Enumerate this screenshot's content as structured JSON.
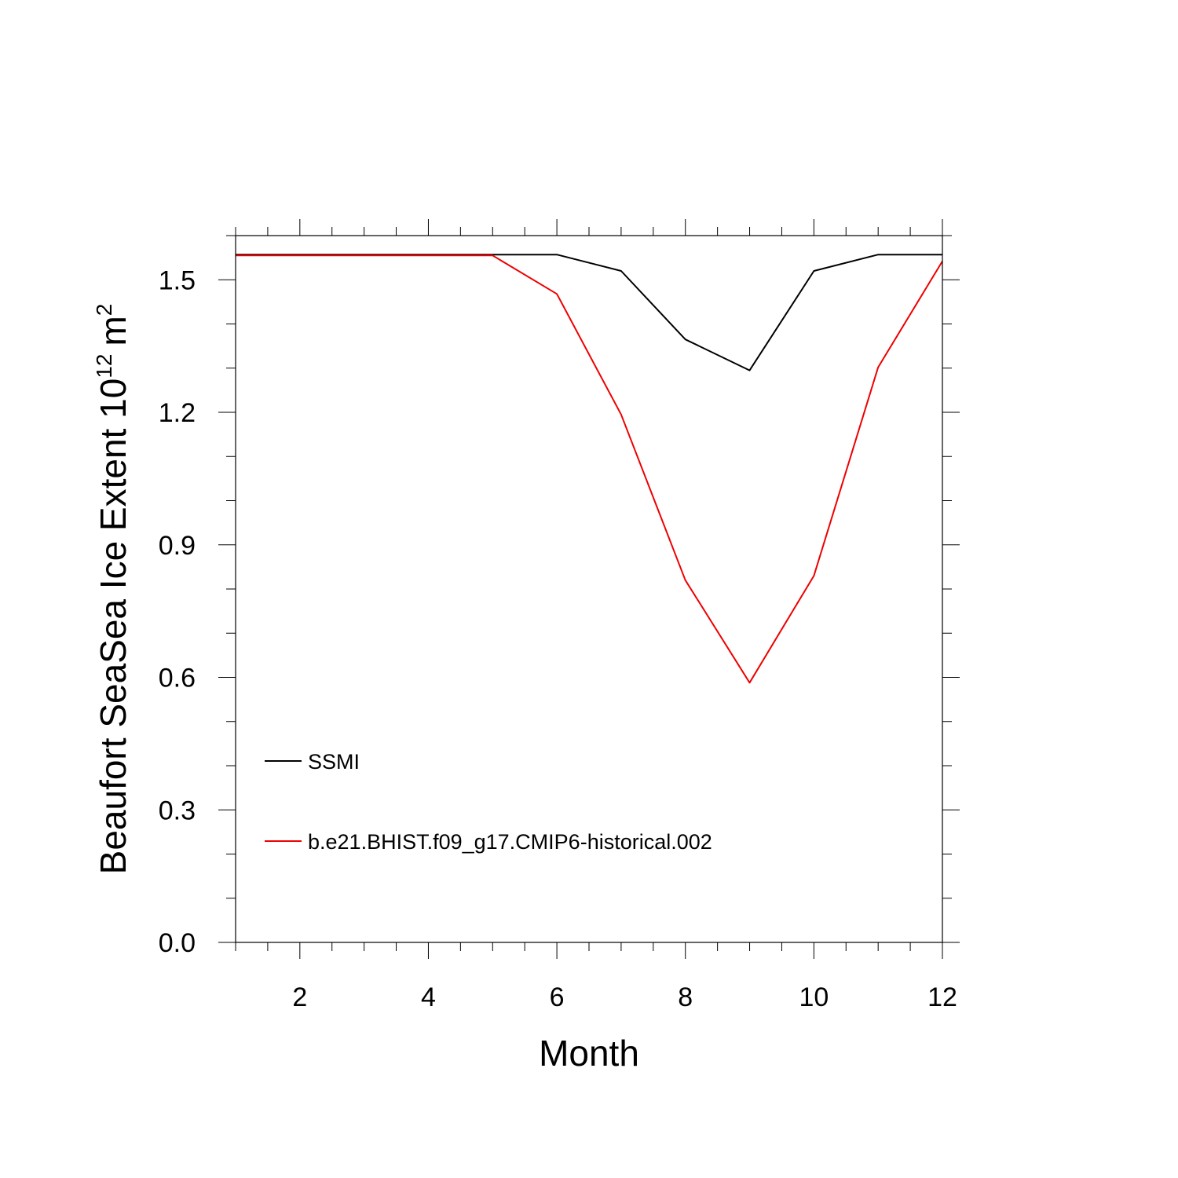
{
  "chart_data": {
    "type": "line",
    "title": "",
    "xlabel": "Month",
    "ylabel": {
      "text": "Beaufort SeaSea Ice Extent 10",
      "exponent": "12",
      "unit": "m",
      "unit_exponent": "2"
    },
    "xlim": [
      1,
      12
    ],
    "ylim": [
      0.0,
      1.6
    ],
    "x_ticks": [
      2,
      4,
      6,
      8,
      10,
      12
    ],
    "x_tick_labels": [
      "2",
      "4",
      "6",
      "8",
      "10",
      "12"
    ],
    "y_ticks": [
      0.0,
      0.3,
      0.6,
      0.9,
      1.2,
      1.5
    ],
    "y_tick_labels": [
      "0.0",
      "0.3",
      "0.6",
      "0.9",
      "1.2",
      "1.5"
    ],
    "x": [
      1,
      2,
      3,
      4,
      5,
      6,
      7,
      8,
      9,
      10,
      11,
      12
    ],
    "series": [
      {
        "name": "SSMI",
        "color": "#000000",
        "values": [
          1.557,
          1.557,
          1.557,
          1.557,
          1.557,
          1.557,
          1.52,
          1.365,
          1.295,
          1.52,
          1.557,
          1.557
        ]
      },
      {
        "name": "b.e21.BHIST.f09_g17.CMIP6-historical.002",
        "color": "#ee0000",
        "values": [
          1.555,
          1.555,
          1.555,
          1.555,
          1.555,
          1.468,
          1.195,
          0.82,
          0.588,
          0.83,
          1.302,
          1.542
        ]
      }
    ],
    "grid": false,
    "legend_position": "lower-left"
  }
}
